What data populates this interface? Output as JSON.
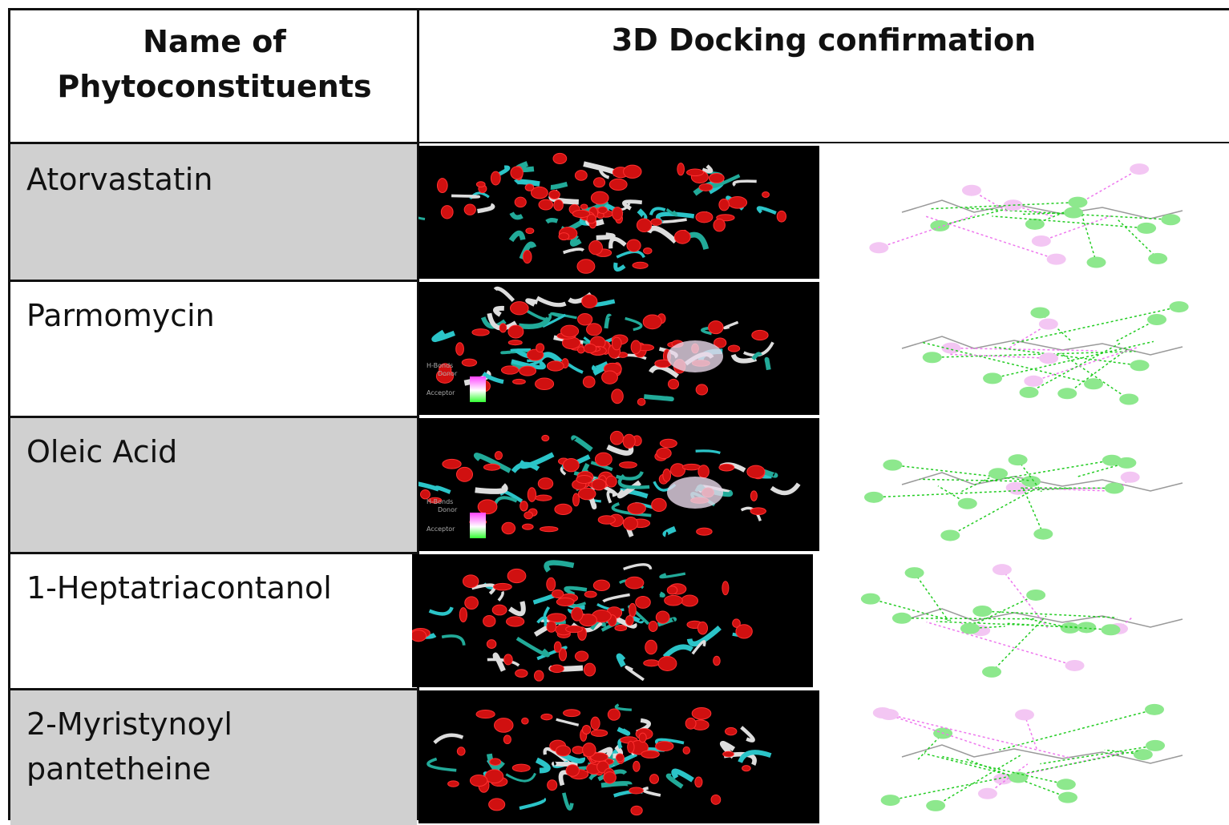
{
  "table": {
    "header": {
      "name_lines": [
        "Name of",
        "Phytoconstituents"
      ],
      "docking": "3D Docking confirmation"
    },
    "rows": [
      {
        "name": "Atorvastatin"
      },
      {
        "name": "Parmomycin"
      },
      {
        "name": "Oleic Acid"
      },
      {
        "name": "1-Heptatriacontanol"
      },
      {
        "name": "2-Myristynoyl pantetheine"
      }
    ]
  },
  "docking_legend": {
    "title": "H-Bonds",
    "donor": "Donor",
    "acceptor": "Acceptor"
  }
}
